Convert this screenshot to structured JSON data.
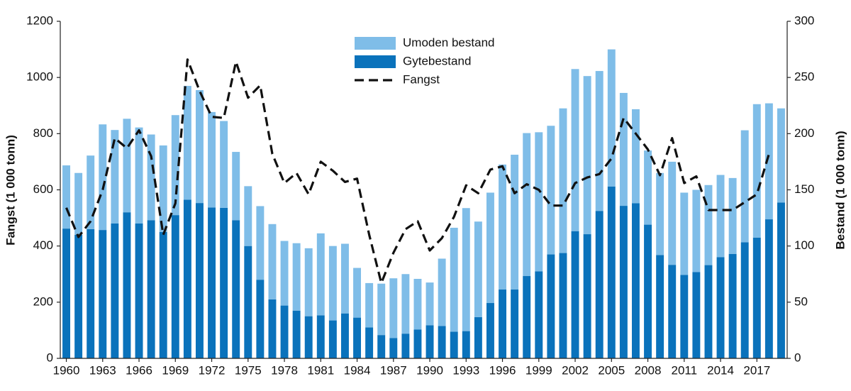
{
  "chart_data": {
    "type": "bar",
    "y_label": "Fangst (1 000 tonn)",
    "y2_label": "Bestand (1 000 tonn)",
    "ylim": [
      0,
      1200
    ],
    "yticks": [
      0,
      200,
      400,
      600,
      800,
      1000,
      1200
    ],
    "y2lim": [
      0,
      300
    ],
    "y2ticks": [
      0,
      50,
      100,
      150,
      200,
      250,
      300
    ],
    "grid": false,
    "legend": "top",
    "categories": [
      "1960",
      null,
      null,
      "1963",
      null,
      null,
      "1966",
      null,
      null,
      "1969",
      null,
      null,
      "1972",
      null,
      null,
      "1975",
      null,
      null,
      "1978",
      null,
      null,
      "1981",
      null,
      null,
      "1984",
      null,
      null,
      "1987",
      null,
      null,
      "1990",
      null,
      null,
      "1993",
      null,
      null,
      "1996",
      null,
      null,
      "1999",
      null,
      null,
      "2002",
      null,
      null,
      "2005",
      null,
      null,
      "2008",
      null,
      null,
      "2011",
      null,
      null,
      "2014",
      null,
      null,
      "2017",
      null,
      null
    ],
    "series": [
      {
        "name": "Umoden bestand",
        "type": "bar",
        "color": "#7fbde8",
        "values": [
          225,
          220,
          262,
          376,
          333,
          333,
          342,
          305,
          308,
          356,
          405,
          402,
          340,
          309,
          243,
          213,
          262,
          268,
          230,
          240,
          242,
          292,
          265,
          248,
          177,
          158,
          183,
          213,
          212,
          180,
          152,
          240,
          370,
          438,
          340,
          393,
          445,
          480,
          509,
          495,
          458,
          515,
          577,
          563,
          498,
          488,
          402,
          335,
          264,
          292,
          367,
          293,
          293,
          285,
          293,
          270,
          399,
          475,
          413,
          335
        ]
      },
      {
        "name": "Gytebestand",
        "type": "bar",
        "color": "#0a72bb",
        "values": [
          462,
          440,
          460,
          457,
          480,
          520,
          480,
          492,
          450,
          510,
          565,
          553,
          537,
          536,
          492,
          400,
          280,
          210,
          188,
          170,
          150,
          153,
          135,
          160,
          145,
          110,
          83,
          72,
          88,
          103,
          118,
          115,
          95,
          97,
          147,
          197,
          245,
          245,
          293,
          310,
          370,
          375,
          453,
          442,
          525,
          612,
          543,
          552,
          476,
          368,
          333,
          297,
          307,
          332,
          360,
          372,
          413,
          430,
          495,
          555
        ]
      },
      {
        "name": "Fangst",
        "type": "line",
        "axis": "y2",
        "color": "#111111",
        "dashed": true,
        "values": [
          134,
          108,
          122,
          150,
          196,
          187,
          203,
          180,
          110,
          138,
          266,
          238,
          215,
          214,
          264,
          232,
          243,
          182,
          156,
          165,
          146,
          175,
          167,
          157,
          160,
          110,
          67,
          94,
          115,
          122,
          96,
          107,
          126,
          154,
          147,
          168,
          171,
          147,
          155,
          150,
          136,
          136,
          156,
          161,
          164,
          178,
          214,
          200,
          186,
          163,
          196,
          156,
          162,
          132,
          132,
          132,
          139,
          146,
          182,
          null
        ]
      }
    ]
  }
}
